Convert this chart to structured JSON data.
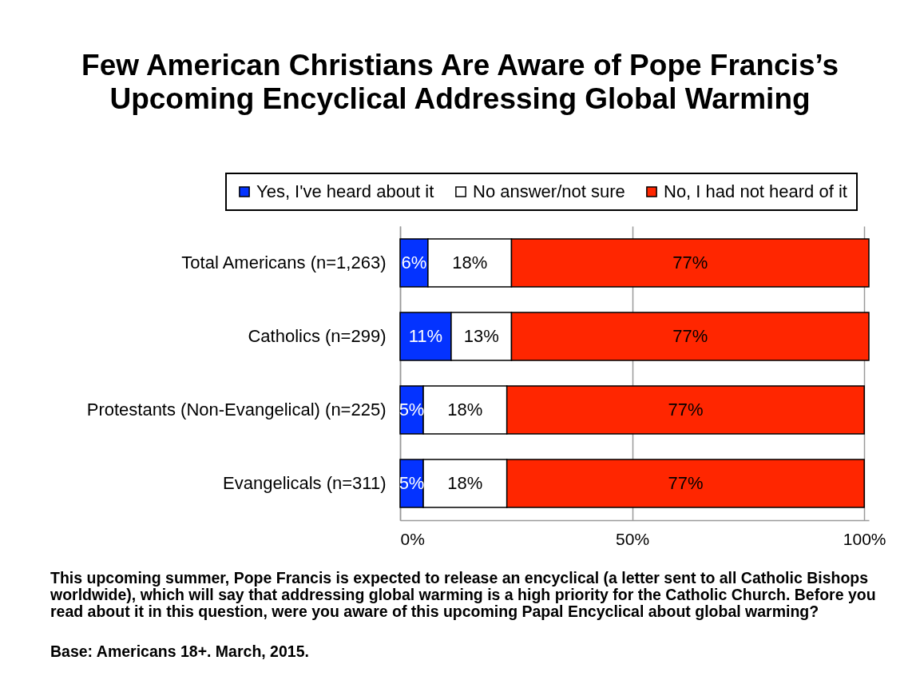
{
  "chart_data": {
    "type": "bar",
    "orientation": "horizontal",
    "stacked": true,
    "title": "Few American Christians Are Aware of Pope Francis’s Upcoming Encyclical Addressing Global Warming",
    "categories": [
      "Total Americans (n=1,263)",
      "Catholics (n=299)",
      "Protestants (Non-Evangelical) (n=225)",
      "Evangelicals (n=311)"
    ],
    "series": [
      {
        "name": "Yes, I've heard about it",
        "color": "#0433ff",
        "values": [
          6,
          11,
          5,
          5
        ],
        "value_labels": [
          "6%",
          "11%",
          "5%",
          "5%"
        ]
      },
      {
        "name": "No answer/not sure",
        "color": "#ffffff",
        "values": [
          18,
          13,
          18,
          18
        ],
        "value_labels": [
          "18%",
          "13%",
          "18%",
          "18%"
        ]
      },
      {
        "name": "No, I had not heard of it",
        "color": "#ff2600",
        "values": [
          77,
          77,
          77,
          77
        ],
        "value_labels": [
          "77%",
          "77%",
          "77%",
          "77%"
        ]
      }
    ],
    "xlim": [
      0,
      101
    ],
    "xticks": [
      {
        "value": 0,
        "label": "0%"
      },
      {
        "value": 50,
        "label": "50%"
      },
      {
        "value": 100,
        "label": "100%"
      }
    ],
    "grid": "x",
    "legend": "top",
    "annotations": [
      "This upcoming summer, Pope Francis is expected to release an encyclical (a letter sent to all Catholic Bishops worldwide), which will say that addressing global warming is a high priority for the Catholic Church. Before you read about it in this question, were you aware of this upcoming Papal Encyclical about global warming?",
      "Base: Americans 18+. March, 2015."
    ]
  }
}
